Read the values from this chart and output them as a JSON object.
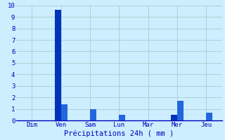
{
  "days": [
    "Dim",
    "Ven",
    "Sam",
    "Lun",
    "Mar",
    "Mer",
    "Jeu"
  ],
  "bar1": [
    0,
    9.6,
    0,
    0,
    0,
    0.5,
    0
  ],
  "bar2": [
    0,
    1.4,
    1.0,
    0.5,
    0,
    1.7,
    0.7
  ],
  "bar_color1": "#0033bb",
  "bar_color2": "#2266dd",
  "background_color": "#cceeff",
  "grid_color": "#aacccc",
  "xlabel": "Précipitations 24h ( mm )",
  "xlabel_color": "#0000bb",
  "tick_color": "#0000bb",
  "ylim": [
    0,
    10
  ],
  "yticks": [
    0,
    1,
    2,
    3,
    4,
    5,
    6,
    7,
    8,
    9,
    10
  ],
  "bar_width": 0.22,
  "bar_gap": 0.22
}
